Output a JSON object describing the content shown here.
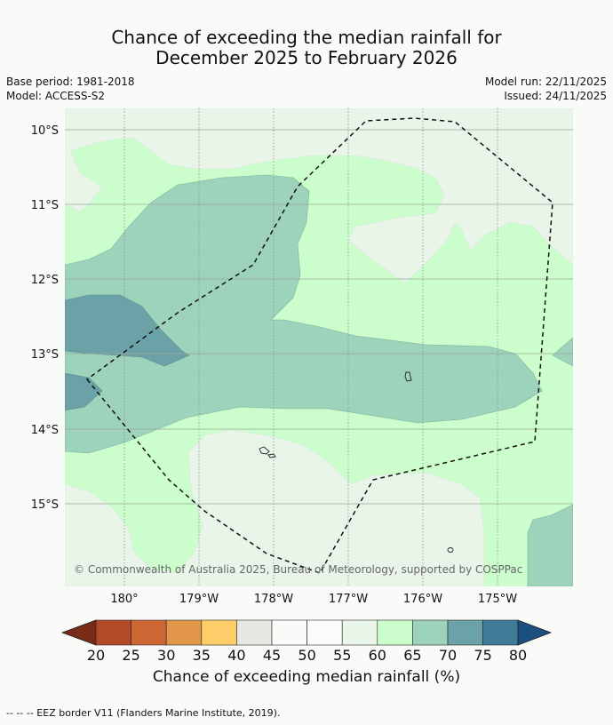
{
  "title_line1": "Chance of exceeding the median rainfall for",
  "title_line2": "December 2025 to February 2026",
  "base_period": "Base period: 1981-2018",
  "model": "Model: ACCESS-S2",
  "model_run": "Model run: 22/11/2025",
  "issued": "Issued: 24/11/2025",
  "lat_labels": [
    "10°S",
    "11°S",
    "12°S",
    "13°S",
    "14°S",
    "15°S"
  ],
  "lon_labels": [
    "180°",
    "179°W",
    "178°W",
    "177°W",
    "176°W",
    "175°W"
  ],
  "copyright": "© Commonwealth of Australia 2025, Bureau of Meteorology, supported by COSPPac",
  "colorbar": {
    "ticks": [
      "20",
      "25",
      "30",
      "35",
      "40",
      "45",
      "50",
      "55",
      "60",
      "65",
      "70",
      "75",
      "80"
    ],
    "colors": [
      "#7a2a18",
      "#b24a28",
      "#cc6734",
      "#e29649",
      "#fdcd6a",
      "#e9e7e2",
      "#fafbf9",
      "#fbfcfa",
      "#eaf5ea",
      "#ccfdcc",
      "#9dd2bb",
      "#6aa2a8",
      "#3f7a97",
      "#1b4f7f"
    ],
    "label": "Chance of exceeding median rainfall (%)"
  },
  "footnote": "--  --  -- EEZ border V11 (Flanders Marine Institute, 2019)."
}
